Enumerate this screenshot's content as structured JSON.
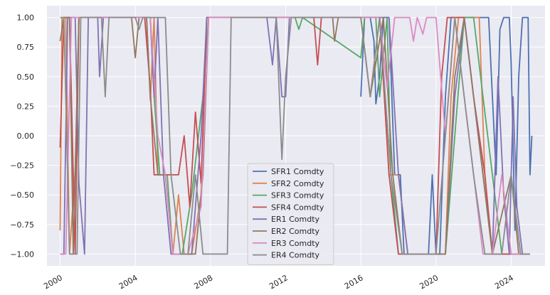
{
  "chart_data": {
    "type": "line",
    "title": "",
    "xlabel": "",
    "ylabel": "",
    "xlim": [
      1999.3,
      2025.8
    ],
    "ylim": [
      -1.1,
      1.1
    ],
    "x_ticks": [
      2000,
      2004,
      2008,
      2012,
      2016,
      2020,
      2024
    ],
    "y_ticks": [
      1.0,
      0.75,
      0.5,
      0.25,
      0.0,
      -0.25,
      -0.5,
      -0.75,
      -1.0
    ],
    "y_tick_labels": [
      "1.00",
      "0.75",
      "0.50",
      "0.25",
      "0.00",
      "−0.25",
      "−0.50",
      "−0.75",
      "−1.00"
    ],
    "grid": true,
    "background": "#eaeaf2",
    "legend_position": "lower-center",
    "series": [
      {
        "name": "SFR1 Comdty",
        "color": "#4c72b0",
        "points": [
          [
            2016.0,
            0.33
          ],
          [
            2016.2,
            1.0
          ],
          [
            2016.5,
            1.0
          ],
          [
            2016.7,
            0.8
          ],
          [
            2016.8,
            0.27
          ],
          [
            2017.0,
            0.5
          ],
          [
            2017.2,
            1.0
          ],
          [
            2017.5,
            1.0
          ],
          [
            2017.8,
            -0.33
          ],
          [
            2018.1,
            -0.33
          ],
          [
            2018.3,
            -1.0
          ],
          [
            2019.0,
            -1.0
          ],
          [
            2019.6,
            -1.0
          ],
          [
            2019.8,
            -0.33
          ],
          [
            2020.0,
            -1.0
          ],
          [
            2020.2,
            -1.0
          ],
          [
            2020.5,
            0.33
          ],
          [
            2020.8,
            1.0
          ],
          [
            2021.5,
            1.0
          ],
          [
            2022.5,
            1.0
          ],
          [
            2022.8,
            1.0
          ],
          [
            2023.0,
            0.33
          ],
          [
            2023.2,
            -0.33
          ],
          [
            2023.4,
            0.9
          ],
          [
            2023.6,
            1.0
          ],
          [
            2023.9,
            1.0
          ],
          [
            2024.0,
            0.6
          ],
          [
            2024.2,
            -0.8
          ],
          [
            2024.4,
            0.5
          ],
          [
            2024.6,
            1.0
          ],
          [
            2024.9,
            1.0
          ],
          [
            2025.0,
            -0.33
          ],
          [
            2025.1,
            0.0
          ]
        ]
      },
      {
        "name": "SFR2 Comdty",
        "color": "#dd8452",
        "points": [
          [
            2000.0,
            -0.8
          ],
          [
            2000.1,
            1.0
          ],
          [
            2000.3,
            1.0
          ],
          [
            2000.5,
            -1.0
          ],
          [
            2000.8,
            -0.3
          ],
          [
            2001.0,
            1.0
          ],
          [
            2004.6,
            1.0
          ],
          [
            2004.8,
            0.3
          ],
          [
            2005.0,
            1.0
          ],
          [
            2005.2,
            -0.33
          ],
          [
            2005.6,
            -0.33
          ],
          [
            2006.0,
            -1.0
          ],
          [
            2006.3,
            -0.5
          ],
          [
            2006.6,
            -1.0
          ],
          [
            2007.0,
            -1.0
          ],
          [
            2007.5,
            -0.5
          ],
          [
            2007.8,
            1.0
          ],
          [
            2011.0,
            1.0
          ],
          [
            2016.0,
            1.0
          ],
          [
            2016.5,
            0.33
          ],
          [
            2017.0,
            1.0
          ],
          [
            2017.5,
            -0.33
          ],
          [
            2018.0,
            -0.33
          ],
          [
            2018.5,
            -1.0
          ],
          [
            2020.5,
            -1.0
          ],
          [
            2020.8,
            0.33
          ],
          [
            2021.2,
            1.0
          ],
          [
            2022.3,
            1.0
          ],
          [
            2022.6,
            -0.33
          ],
          [
            2023.0,
            -1.0
          ],
          [
            2024.0,
            -1.0
          ],
          [
            2024.6,
            -1.0
          ],
          [
            2025.0,
            -1.0
          ]
        ]
      },
      {
        "name": "SFR3 Comdty",
        "color": "#55a868",
        "points": [
          [
            2004.8,
            1.0
          ],
          [
            2005.0,
            0.33
          ],
          [
            2005.3,
            -0.33
          ],
          [
            2005.7,
            -0.33
          ],
          [
            2006.0,
            -1.0
          ],
          [
            2006.5,
            -1.0
          ],
          [
            2007.0,
            -0.5
          ],
          [
            2007.6,
            0.33
          ],
          [
            2007.9,
            1.0
          ],
          [
            2012.5,
            1.0
          ],
          [
            2012.7,
            0.9
          ],
          [
            2012.9,
            1.0
          ],
          [
            2016.0,
            0.66
          ],
          [
            2016.2,
            1.0
          ],
          [
            2016.8,
            1.0
          ],
          [
            2017.0,
            0.33
          ],
          [
            2017.4,
            1.0
          ],
          [
            2017.6,
            -0.33
          ],
          [
            2018.0,
            -1.0
          ],
          [
            2020.5,
            -1.0
          ],
          [
            2021.0,
            0.0
          ],
          [
            2021.5,
            1.0
          ],
          [
            2022.0,
            1.0
          ],
          [
            2022.5,
            0.33
          ],
          [
            2023.0,
            -0.33
          ],
          [
            2023.5,
            -1.0
          ],
          [
            2024.5,
            -1.0
          ],
          [
            2025.0,
            -1.0
          ]
        ]
      },
      {
        "name": "SFR4 Comdty",
        "color": "#c44e52",
        "points": [
          [
            2000.0,
            -0.1
          ],
          [
            2000.2,
            1.0
          ],
          [
            2000.5,
            1.0
          ],
          [
            2000.8,
            -1.0
          ],
          [
            2001.0,
            1.0
          ],
          [
            2004.5,
            1.0
          ],
          [
            2004.8,
            0.4
          ],
          [
            2005.0,
            -0.33
          ],
          [
            2005.5,
            -0.33
          ],
          [
            2005.8,
            -0.33
          ],
          [
            2006.3,
            -0.33
          ],
          [
            2006.6,
            0.0
          ],
          [
            2006.9,
            -0.6
          ],
          [
            2007.2,
            0.2
          ],
          [
            2007.5,
            -0.4
          ],
          [
            2007.8,
            1.0
          ],
          [
            2008.2,
            1.0
          ],
          [
            2013.5,
            1.0
          ],
          [
            2013.7,
            0.6
          ],
          [
            2013.9,
            1.0
          ],
          [
            2017.0,
            1.0
          ],
          [
            2017.5,
            -0.33
          ],
          [
            2018.0,
            -1.0
          ],
          [
            2019.5,
            -1.0
          ],
          [
            2020.0,
            -1.0
          ],
          [
            2020.3,
            0.5
          ],
          [
            2020.6,
            1.0
          ],
          [
            2021.5,
            1.0
          ],
          [
            2022.0,
            0.33
          ],
          [
            2022.6,
            -0.33
          ],
          [
            2023.0,
            -1.0
          ],
          [
            2024.0,
            -1.0
          ],
          [
            2025.0,
            -1.0
          ]
        ]
      },
      {
        "name": "ER1 Comdty",
        "color": "#8172b3",
        "points": [
          [
            2000.0,
            -1.0
          ],
          [
            2000.2,
            -1.0
          ],
          [
            2000.4,
            1.0
          ],
          [
            2000.8,
            1.0
          ],
          [
            2001.0,
            -0.4
          ],
          [
            2001.3,
            -1.0
          ],
          [
            2001.5,
            1.0
          ],
          [
            2002.0,
            1.0
          ],
          [
            2002.1,
            0.5
          ],
          [
            2002.3,
            1.0
          ],
          [
            2004.8,
            1.0
          ],
          [
            2005.0,
            0.33
          ],
          [
            2005.2,
            1.0
          ],
          [
            2005.5,
            -0.33
          ],
          [
            2005.9,
            -1.0
          ],
          [
            2006.5,
            -1.0
          ],
          [
            2007.0,
            -1.0
          ],
          [
            2007.5,
            0.0
          ],
          [
            2007.8,
            1.0
          ],
          [
            2011.0,
            1.0
          ],
          [
            2011.3,
            0.6
          ],
          [
            2011.5,
            1.0
          ],
          [
            2011.8,
            0.33
          ],
          [
            2012.0,
            0.33
          ],
          [
            2012.2,
            1.0
          ],
          [
            2016.0,
            1.0
          ],
          [
            2017.5,
            1.0
          ],
          [
            2018.0,
            -0.33
          ],
          [
            2018.5,
            -1.0
          ],
          [
            2020.5,
            -1.0
          ],
          [
            2021.0,
            0.33
          ],
          [
            2021.5,
            1.0
          ],
          [
            2022.0,
            0.33
          ],
          [
            2022.5,
            -0.33
          ],
          [
            2023.0,
            -1.0
          ],
          [
            2023.3,
            0.5
          ],
          [
            2023.6,
            -0.5
          ],
          [
            2023.9,
            -1.0
          ],
          [
            2024.1,
            0.33
          ],
          [
            2024.3,
            -0.6
          ],
          [
            2024.6,
            -1.0
          ],
          [
            2025.0,
            -1.0
          ]
        ]
      },
      {
        "name": "ER2 Comdty",
        "color": "#937860",
        "points": [
          [
            2000.0,
            0.8
          ],
          [
            2000.2,
            1.0
          ],
          [
            2000.5,
            1.0
          ],
          [
            2000.7,
            -1.0
          ],
          [
            2001.0,
            1.0
          ],
          [
            2003.8,
            1.0
          ],
          [
            2004.0,
            0.66
          ],
          [
            2004.2,
            1.0
          ],
          [
            2004.6,
            1.0
          ],
          [
            2004.8,
            0.33
          ],
          [
            2005.2,
            -0.33
          ],
          [
            2005.6,
            -0.33
          ],
          [
            2006.0,
            -1.0
          ],
          [
            2006.6,
            -1.0
          ],
          [
            2007.2,
            -1.0
          ],
          [
            2007.6,
            -0.33
          ],
          [
            2007.9,
            1.0
          ],
          [
            2013.0,
            1.0
          ],
          [
            2014.5,
            1.0
          ],
          [
            2014.6,
            0.8
          ],
          [
            2014.8,
            1.0
          ],
          [
            2016.0,
            1.0
          ],
          [
            2016.5,
            0.33
          ],
          [
            2017.2,
            1.0
          ],
          [
            2017.7,
            -0.33
          ],
          [
            2018.2,
            -1.0
          ],
          [
            2020.5,
            -1.0
          ],
          [
            2021.0,
            0.5
          ],
          [
            2021.5,
            1.0
          ],
          [
            2022.0,
            0.33
          ],
          [
            2022.5,
            -0.33
          ],
          [
            2023.0,
            -1.0
          ],
          [
            2024.0,
            -0.33
          ],
          [
            2024.4,
            -1.0
          ],
          [
            2025.0,
            -1.0
          ]
        ]
      },
      {
        "name": "ER3 Comdty",
        "color": "#da8bc3",
        "points": [
          [
            2000.0,
            -1.0
          ],
          [
            2000.3,
            -1.0
          ],
          [
            2000.6,
            1.0
          ],
          [
            2001.0,
            1.0
          ],
          [
            2004.8,
            1.0
          ],
          [
            2005.2,
            0.0
          ],
          [
            2005.6,
            -0.33
          ],
          [
            2006.0,
            -1.0
          ],
          [
            2006.8,
            -1.0
          ],
          [
            2007.5,
            -0.6
          ],
          [
            2007.9,
            1.0
          ],
          [
            2012.0,
            1.0
          ],
          [
            2017.0,
            1.0
          ],
          [
            2017.4,
            0.4
          ],
          [
            2017.8,
            1.0
          ],
          [
            2018.6,
            1.0
          ],
          [
            2018.8,
            0.8
          ],
          [
            2019.0,
            1.0
          ],
          [
            2019.3,
            0.86
          ],
          [
            2019.5,
            1.0
          ],
          [
            2020.0,
            1.0
          ],
          [
            2020.5,
            0.0
          ],
          [
            2021.0,
            1.0
          ],
          [
            2021.5,
            0.33
          ],
          [
            2022.0,
            -0.33
          ],
          [
            2022.5,
            -1.0
          ],
          [
            2023.0,
            -1.0
          ],
          [
            2023.5,
            -0.33
          ],
          [
            2024.0,
            -1.0
          ],
          [
            2024.5,
            -1.0
          ],
          [
            2025.0,
            -1.0
          ]
        ]
      },
      {
        "name": "ER4 Comdty",
        "color": "#8c8c8c",
        "points": [
          [
            2000.0,
            1.0
          ],
          [
            2000.2,
            1.0
          ],
          [
            2000.5,
            -1.0
          ],
          [
            2000.9,
            -1.0
          ],
          [
            2001.1,
            1.0
          ],
          [
            2002.2,
            1.0
          ],
          [
            2002.4,
            0.33
          ],
          [
            2002.6,
            1.0
          ],
          [
            2004.0,
            1.0
          ],
          [
            2004.2,
            0.9
          ],
          [
            2004.4,
            1.0
          ],
          [
            2005.0,
            1.0
          ],
          [
            2005.6,
            1.0
          ],
          [
            2005.9,
            -0.33
          ],
          [
            2006.4,
            -1.0
          ],
          [
            2006.8,
            -1.0
          ],
          [
            2007.2,
            -0.33
          ],
          [
            2007.6,
            -1.0
          ],
          [
            2008.0,
            -1.0
          ],
          [
            2008.9,
            -1.0
          ],
          [
            2009.1,
            1.0
          ],
          [
            2011.5,
            1.0
          ],
          [
            2011.8,
            -0.2
          ],
          [
            2012.0,
            0.5
          ],
          [
            2012.3,
            1.0
          ],
          [
            2013.0,
            1.0
          ],
          [
            2016.0,
            1.0
          ],
          [
            2016.5,
            0.33
          ],
          [
            2017.0,
            1.0
          ],
          [
            2017.6,
            -0.33
          ],
          [
            2018.2,
            -1.0
          ],
          [
            2020.0,
            -1.0
          ],
          [
            2020.5,
            0.0
          ],
          [
            2021.0,
            1.0
          ],
          [
            2021.5,
            0.33
          ],
          [
            2022.0,
            -0.33
          ],
          [
            2022.6,
            -1.0
          ],
          [
            2023.5,
            -1.0
          ],
          [
            2024.0,
            -0.33
          ],
          [
            2024.5,
            -1.0
          ],
          [
            2025.0,
            -1.0
          ]
        ]
      }
    ]
  }
}
